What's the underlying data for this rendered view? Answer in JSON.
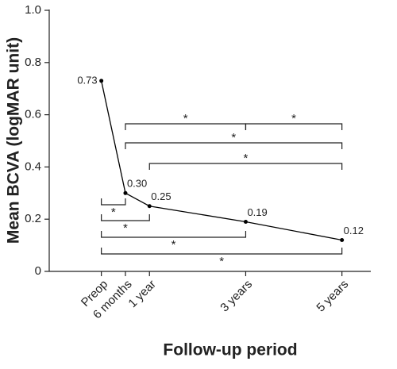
{
  "chart_data": {
    "type": "line",
    "x": [
      0,
      6,
      12,
      36,
      60
    ],
    "xticks": [
      {
        "value": 0,
        "label": "Preop"
      },
      {
        "value": 6,
        "label": "6 months"
      },
      {
        "value": 12,
        "label": "1 year"
      },
      {
        "value": 36,
        "label": "3 years"
      },
      {
        "value": 60,
        "label": "5 years"
      }
    ],
    "xlim": [
      -13,
      67
    ],
    "values": [
      0.73,
      0.3,
      0.25,
      0.19,
      0.12
    ],
    "value_labels": [
      "0.73",
      "0.30",
      "0.25",
      "0.19",
      "0.12"
    ],
    "color": "#000000",
    "ylim": [
      0,
      1.0
    ],
    "yticks": [
      0,
      0.2,
      0.4,
      0.6,
      0.8,
      {
        "value": 1.0,
        "label": "1.0"
      }
    ],
    "xlabel": "Follow-up period",
    "ylabel": "Mean BCVA (logMAR unit)",
    "brackets": [
      {
        "between": [
          1,
          3
        ],
        "label": "*"
      },
      {
        "between": [
          3,
          4
        ],
        "label": "*"
      },
      {
        "between": [
          1,
          4
        ],
        "label": "*"
      },
      {
        "between": [
          2,
          4
        ],
        "label": "*"
      },
      {
        "between": [
          0,
          1
        ],
        "label": "*"
      },
      {
        "between": [
          0,
          2
        ],
        "label": "*"
      },
      {
        "between": [
          0,
          3
        ],
        "label": "*"
      },
      {
        "between": [
          0,
          4
        ],
        "label": "*"
      }
    ]
  }
}
